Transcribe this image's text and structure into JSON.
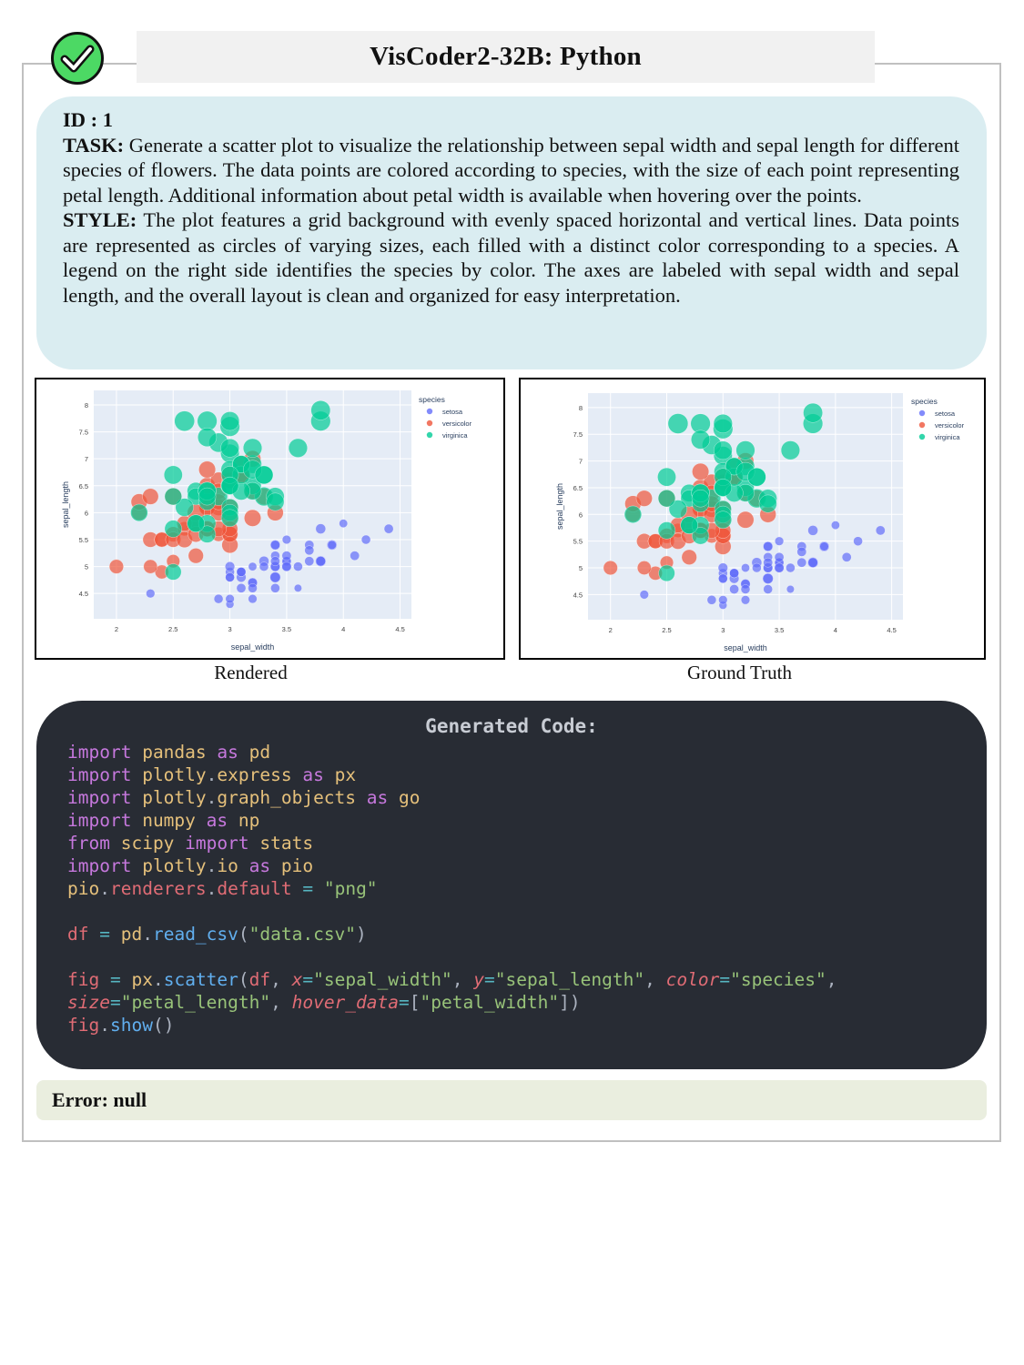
{
  "header": {
    "title": "VisCoder2-32B: Python",
    "status_icon": "check-circle-icon",
    "status_color": "#4cd964"
  },
  "task": {
    "id_label": "ID : 1",
    "task_label": "TASK:",
    "task_text": " Generate a scatter plot to visualize the relationship between sepal width and sepal length for different species of flowers. The data points are colored according to species, with the size of each point representing petal length. Additional information about petal width is available when hovering over the points.",
    "style_label": "STYLE:",
    "style_text": " The plot features a grid background with evenly spaced horizontal and vertical lines. Data points are represented as circles of varying sizes, each filled with a distinct color corresponding to a species. A legend on the right side identifies the species by color. The axes are labeled with sepal width and sepal length, and the overall layout is clean and organized for easy interpretation."
  },
  "panels": {
    "rendered_caption": "Rendered",
    "ground_truth_caption": "Ground Truth"
  },
  "code": {
    "title": "Generated Code:",
    "lines": [
      "import pandas as pd",
      "import plotly.express as px",
      "import plotly.graph_objects as go",
      "import numpy as np",
      "from scipy import stats",
      "import plotly.io as pio",
      "pio.renderers.default = \"png\"",
      "",
      "df = pd.read_csv(\"data.csv\")",
      "",
      "fig = px.scatter(df, x=\"sepal_width\", y=\"sepal_length\", color=\"species\",",
      "size=\"petal_length\", hover_data=[\"petal_width\"])",
      "fig.show()"
    ]
  },
  "error": {
    "text": "Error: null"
  },
  "chart_data": [
    {
      "panel": "Rendered",
      "type": "scatter",
      "title": "",
      "xlabel": "sepal_width",
      "ylabel": "sepal_length",
      "xlim": [
        1.8,
        4.6
      ],
      "ylim": [
        4.03,
        8.27
      ],
      "xticks": [
        "2",
        "2.5",
        "3",
        "3.5",
        "4",
        "4.5"
      ],
      "yticks": [
        "4.5",
        "5",
        "5.5",
        "6",
        "6.5",
        "7",
        "7.5",
        "8"
      ],
      "grid": true,
      "legend": {
        "title": "species",
        "position": "right",
        "entries": [
          "setosa",
          "versicolor",
          "virginica"
        ]
      },
      "size_variable": "petal_length",
      "series_ref": "iris"
    },
    {
      "panel": "Ground Truth",
      "type": "scatter",
      "title": "",
      "xlabel": "sepal_width",
      "ylabel": "sepal_length",
      "xlim": [
        1.8,
        4.6
      ],
      "ylim": [
        4.03,
        8.27
      ],
      "xticks": [
        "2",
        "2.5",
        "3",
        "3.5",
        "4",
        "4.5"
      ],
      "yticks": [
        "4.5",
        "5",
        "5.5",
        "6",
        "6.5",
        "7",
        "7.5",
        "8"
      ],
      "grid": true,
      "legend": {
        "title": "species",
        "position": "right",
        "entries": [
          "setosa",
          "versicolor",
          "virginica"
        ]
      },
      "size_variable": "petal_length",
      "series_ref": "iris"
    }
  ],
  "iris": {
    "series": [
      {
        "name": "setosa",
        "color": "#636efa",
        "points": [
          [
            3.5,
            5.1,
            1.4
          ],
          [
            3.0,
            4.9,
            1.4
          ],
          [
            3.2,
            4.7,
            1.3
          ],
          [
            3.1,
            4.6,
            1.5
          ],
          [
            3.6,
            5.0,
            1.4
          ],
          [
            3.9,
            5.4,
            1.7
          ],
          [
            3.4,
            4.6,
            1.4
          ],
          [
            3.4,
            5.0,
            1.5
          ],
          [
            2.9,
            4.4,
            1.4
          ],
          [
            3.1,
            4.9,
            1.5
          ],
          [
            3.7,
            5.4,
            1.5
          ],
          [
            3.4,
            4.8,
            1.6
          ],
          [
            3.0,
            4.8,
            1.4
          ],
          [
            3.0,
            4.3,
            1.1
          ],
          [
            4.0,
            5.8,
            1.2
          ],
          [
            4.4,
            5.7,
            1.5
          ],
          [
            3.9,
            5.4,
            1.3
          ],
          [
            3.5,
            5.1,
            1.4
          ],
          [
            3.8,
            5.7,
            1.7
          ],
          [
            3.8,
            5.1,
            1.5
          ],
          [
            3.4,
            5.4,
            1.7
          ],
          [
            3.7,
            5.1,
            1.5
          ],
          [
            3.6,
            4.6,
            1.0
          ],
          [
            3.3,
            5.1,
            1.7
          ],
          [
            3.4,
            4.8,
            1.9
          ],
          [
            3.0,
            5.0,
            1.6
          ],
          [
            3.4,
            5.0,
            1.6
          ],
          [
            3.5,
            5.2,
            1.5
          ],
          [
            3.4,
            5.2,
            1.4
          ],
          [
            3.2,
            4.7,
            1.6
          ],
          [
            3.1,
            4.8,
            1.6
          ],
          [
            3.4,
            5.4,
            1.5
          ],
          [
            4.1,
            5.2,
            1.5
          ],
          [
            4.2,
            5.5,
            1.4
          ],
          [
            3.1,
            4.9,
            1.5
          ],
          [
            3.2,
            5.0,
            1.2
          ],
          [
            3.5,
            5.5,
            1.3
          ],
          [
            3.1,
            4.9,
            1.5
          ],
          [
            3.0,
            4.4,
            1.3
          ],
          [
            3.4,
            5.1,
            1.5
          ],
          [
            3.5,
            5.0,
            1.3
          ],
          [
            2.3,
            4.5,
            1.3
          ],
          [
            3.2,
            4.4,
            1.3
          ],
          [
            3.5,
            5.0,
            1.6
          ],
          [
            3.8,
            5.1,
            1.9
          ],
          [
            3.0,
            4.8,
            1.4
          ],
          [
            3.8,
            5.1,
            1.6
          ],
          [
            3.2,
            4.6,
            1.4
          ],
          [
            3.7,
            5.3,
            1.5
          ],
          [
            3.3,
            5.0,
            1.4
          ]
        ]
      },
      {
        "name": "versicolor",
        "color": "#ef553b",
        "points": [
          [
            3.2,
            7.0,
            4.7
          ],
          [
            3.2,
            6.4,
            4.5
          ],
          [
            3.1,
            6.9,
            4.9
          ],
          [
            2.3,
            5.5,
            4.0
          ],
          [
            2.8,
            6.5,
            4.6
          ],
          [
            2.8,
            5.7,
            4.5
          ],
          [
            3.3,
            6.3,
            4.7
          ],
          [
            2.4,
            4.9,
            3.3
          ],
          [
            2.9,
            6.6,
            4.6
          ],
          [
            2.7,
            5.2,
            3.9
          ],
          [
            2.0,
            5.0,
            3.5
          ],
          [
            3.0,
            5.9,
            4.2
          ],
          [
            2.2,
            6.0,
            4.0
          ],
          [
            2.9,
            6.1,
            4.7
          ],
          [
            2.9,
            5.6,
            3.6
          ],
          [
            3.1,
            6.7,
            4.4
          ],
          [
            3.0,
            5.6,
            4.5
          ],
          [
            2.7,
            5.8,
            4.1
          ],
          [
            2.2,
            6.2,
            4.5
          ],
          [
            2.5,
            5.6,
            3.9
          ],
          [
            3.2,
            5.9,
            4.8
          ],
          [
            2.8,
            6.1,
            4.0
          ],
          [
            2.5,
            6.3,
            4.9
          ],
          [
            2.8,
            6.1,
            4.7
          ],
          [
            2.9,
            6.4,
            4.3
          ],
          [
            3.0,
            6.6,
            4.4
          ],
          [
            2.8,
            6.8,
            4.8
          ],
          [
            3.0,
            6.7,
            5.0
          ],
          [
            2.9,
            6.0,
            4.5
          ],
          [
            2.6,
            5.7,
            3.5
          ],
          [
            2.4,
            5.5,
            3.8
          ],
          [
            2.4,
            5.5,
            3.7
          ],
          [
            2.7,
            5.8,
            3.9
          ],
          [
            2.7,
            6.0,
            5.1
          ],
          [
            3.0,
            5.4,
            4.5
          ],
          [
            3.4,
            6.0,
            4.5
          ],
          [
            3.1,
            6.7,
            4.7
          ],
          [
            2.3,
            6.3,
            4.4
          ],
          [
            3.0,
            5.6,
            4.1
          ],
          [
            2.5,
            5.5,
            4.0
          ],
          [
            2.6,
            5.5,
            4.4
          ],
          [
            3.0,
            6.1,
            4.6
          ],
          [
            2.6,
            5.8,
            4.0
          ],
          [
            2.3,
            5.0,
            3.3
          ],
          [
            2.7,
            5.6,
            4.2
          ],
          [
            3.0,
            5.7,
            4.2
          ],
          [
            2.9,
            5.7,
            4.2
          ],
          [
            2.9,
            6.2,
            4.3
          ],
          [
            2.5,
            5.1,
            3.0
          ],
          [
            2.8,
            5.7,
            4.1
          ]
        ]
      },
      {
        "name": "virginica",
        "color": "#00cc96",
        "points": [
          [
            3.3,
            6.3,
            6.0
          ],
          [
            2.7,
            5.8,
            5.1
          ],
          [
            3.0,
            7.1,
            5.9
          ],
          [
            2.9,
            6.3,
            5.6
          ],
          [
            3.0,
            6.5,
            5.8
          ],
          [
            3.0,
            7.6,
            6.6
          ],
          [
            2.5,
            4.9,
            4.5
          ],
          [
            2.9,
            7.3,
            6.3
          ],
          [
            2.5,
            6.7,
            5.8
          ],
          [
            3.6,
            7.2,
            6.1
          ],
          [
            3.2,
            6.5,
            5.1
          ],
          [
            2.7,
            6.4,
            5.3
          ],
          [
            3.0,
            6.8,
            5.5
          ],
          [
            2.5,
            5.7,
            5.0
          ],
          [
            2.8,
            5.8,
            5.1
          ],
          [
            3.2,
            6.4,
            5.3
          ],
          [
            3.0,
            6.5,
            5.5
          ],
          [
            3.8,
            7.7,
            6.7
          ],
          [
            2.6,
            7.7,
            6.9
          ],
          [
            2.2,
            6.0,
            5.0
          ],
          [
            3.2,
            6.9,
            5.7
          ],
          [
            2.8,
            5.6,
            4.9
          ],
          [
            2.8,
            7.7,
            6.7
          ],
          [
            2.7,
            6.3,
            4.9
          ],
          [
            3.3,
            6.7,
            5.7
          ],
          [
            3.2,
            7.2,
            6.0
          ],
          [
            2.8,
            6.2,
            4.8
          ],
          [
            3.0,
            6.1,
            4.9
          ],
          [
            2.8,
            6.4,
            5.6
          ],
          [
            3.0,
            7.2,
            5.8
          ],
          [
            2.8,
            7.4,
            6.1
          ],
          [
            3.8,
            7.9,
            6.4
          ],
          [
            2.8,
            6.4,
            5.6
          ],
          [
            2.8,
            6.3,
            5.1
          ],
          [
            2.6,
            6.1,
            5.6
          ],
          [
            3.0,
            7.7,
            6.1
          ],
          [
            3.4,
            6.3,
            5.6
          ],
          [
            3.1,
            6.4,
            5.5
          ],
          [
            3.0,
            6.0,
            4.8
          ],
          [
            3.1,
            6.9,
            5.4
          ],
          [
            3.1,
            6.7,
            5.6
          ],
          [
            3.1,
            6.9,
            5.1
          ],
          [
            2.7,
            5.8,
            5.1
          ],
          [
            3.2,
            6.8,
            5.9
          ],
          [
            3.3,
            6.7,
            5.7
          ],
          [
            3.0,
            6.7,
            5.2
          ],
          [
            2.5,
            6.3,
            5.0
          ],
          [
            3.0,
            6.5,
            5.2
          ],
          [
            3.4,
            6.2,
            5.4
          ],
          [
            3.0,
            5.9,
            5.1
          ]
        ]
      }
    ]
  }
}
